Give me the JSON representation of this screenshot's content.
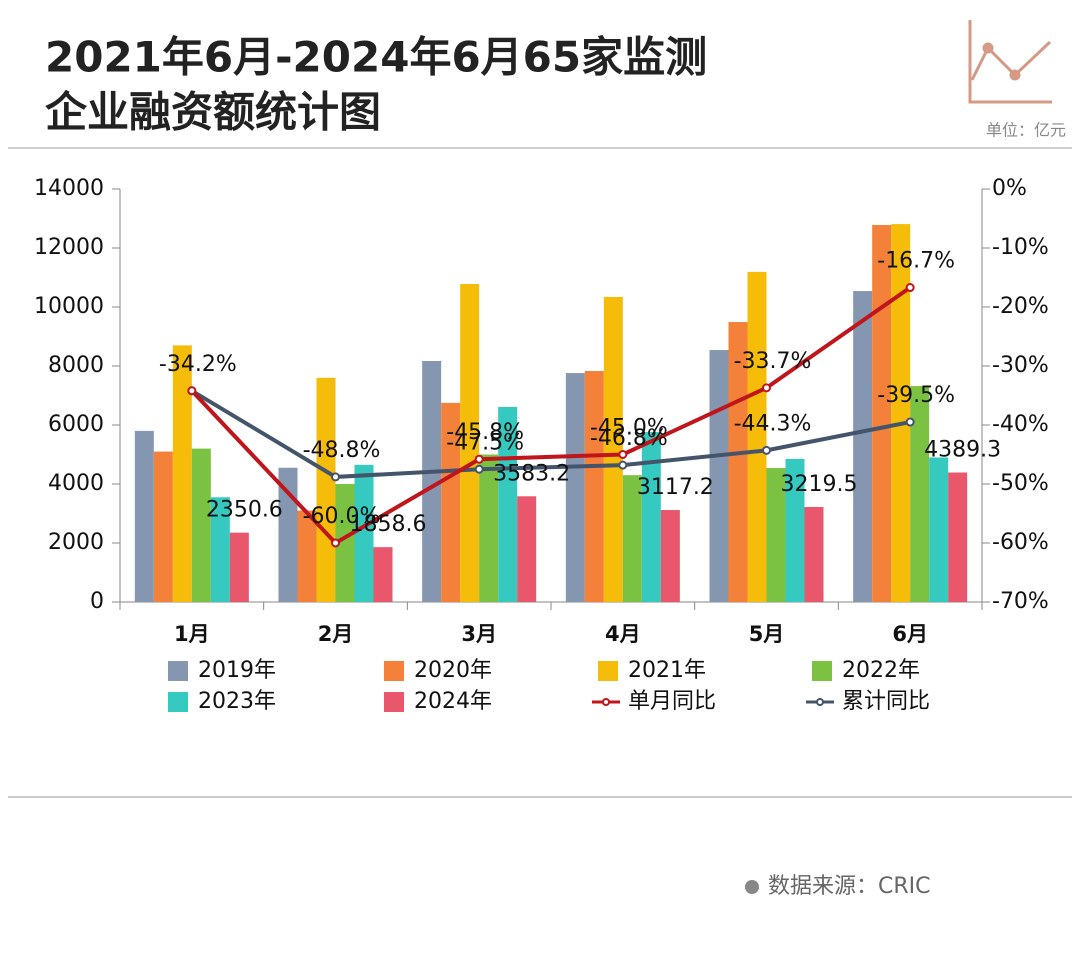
{
  "chart_data": {
    "type": "bar",
    "title": "2021年6月-2024年6月65家监测",
    "subtitle": "企业融资额统计图",
    "unit": "单位：亿元",
    "source": "数据来源：CRIC",
    "categories": [
      "1月",
      "2月",
      "3月",
      "4月",
      "5月",
      "6月"
    ],
    "ylim": [
      0,
      14000
    ],
    "yticks": [
      0,
      2000,
      4000,
      6000,
      8000,
      10000,
      12000,
      14000
    ],
    "y2lim": [
      -70,
      0
    ],
    "y2ticks": [
      {
        "value": 0,
        "label": "0%"
      },
      {
        "value": -10,
        "label": "-10%"
      },
      {
        "value": -20,
        "label": "-20%"
      },
      {
        "value": -30,
        "label": "-30%"
      },
      {
        "value": -40,
        "label": "-40%"
      },
      {
        "value": -50,
        "label": "-50%"
      },
      {
        "value": -60,
        "label": "-60%"
      },
      {
        "value": -70,
        "label": "-70%"
      }
    ],
    "grid": false,
    "series": [
      {
        "name": "2019年",
        "type": "bar",
        "color": "#8496b0",
        "values": [
          5800,
          4550,
          8170,
          7760,
          8540,
          10540
        ]
      },
      {
        "name": "2020年",
        "type": "bar",
        "color": "#f4813a",
        "values": [
          5100,
          3100,
          6750,
          7830,
          9490,
          12780
        ]
      },
      {
        "name": "2021年",
        "type": "bar",
        "color": "#f5bc0a",
        "values": [
          8700,
          7600,
          10780,
          10340,
          11190,
          12810
        ]
      },
      {
        "name": "2022年",
        "type": "bar",
        "color": "#7cc242",
        "values": [
          5200,
          4000,
          5000,
          4300,
          4540,
          7320
        ]
      },
      {
        "name": "2023年",
        "type": "bar",
        "color": "#35c9c0",
        "values": [
          3550,
          4650,
          6610,
          5760,
          4850,
          4900
        ]
      },
      {
        "name": "2024年",
        "type": "bar",
        "color": "#e8576b",
        "values": [
          2350.6,
          1858.6,
          3583.2,
          3117.2,
          3219.5,
          4389.3
        ],
        "show_labels": true
      },
      {
        "name": "单月同比",
        "type": "line",
        "axis": "y2",
        "color": "#c0151b",
        "values": [
          -34.2,
          -60.0,
          -45.8,
          -45.0,
          -33.7,
          -16.7
        ],
        "value_labels": [
          "-34.2%",
          "-60.0%",
          "-45.8%",
          "-45.0%",
          "-33.7%",
          "-16.7%"
        ]
      },
      {
        "name": "累计同比",
        "type": "line",
        "axis": "y2",
        "color": "#44546a",
        "values": [
          -34.2,
          -48.8,
          -47.5,
          -46.8,
          -44.3,
          -39.5
        ],
        "value_labels": [
          null,
          "-48.8%",
          "-47.5%",
          "-46.8%",
          "-44.3%",
          "-39.5%"
        ]
      }
    ]
  }
}
